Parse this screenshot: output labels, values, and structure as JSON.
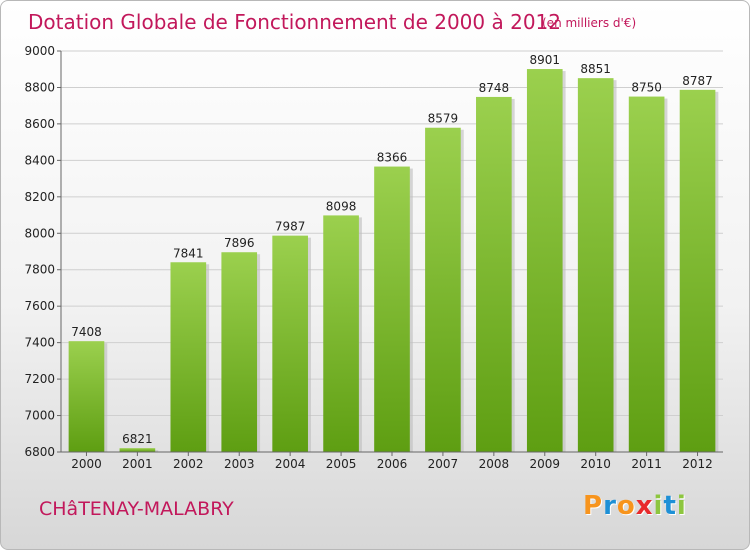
{
  "chart_data": {
    "type": "bar",
    "title": "Dotation Globale de Fonctionnement de 2000 à 2012",
    "unit": "(en milliers d'€)",
    "categories": [
      "2000",
      "2001",
      "2002",
      "2003",
      "2004",
      "2005",
      "2006",
      "2007",
      "2008",
      "2009",
      "2010",
      "2011",
      "2012"
    ],
    "values": [
      7408,
      6821,
      7841,
      7896,
      7987,
      8098,
      8366,
      8579,
      8748,
      8901,
      8851,
      8750,
      8787
    ],
    "ylim": [
      6800,
      9000
    ],
    "yticks": [
      6800,
      7000,
      7200,
      7400,
      7600,
      7800,
      8000,
      8200,
      8400,
      8600,
      8800,
      9000
    ],
    "grid": true,
    "bar_color": "#8dc63f"
  },
  "footer": {
    "city": "CHâTENAY-MALABRY",
    "logo_letters": [
      "P",
      "r",
      "o",
      "x",
      "i",
      "t",
      "i"
    ],
    "logo_colors": [
      "#f7941d",
      "#1e90d6",
      "#f7941d",
      "#e8292b",
      "#8dc63f",
      "#1e90d6",
      "#8dc63f"
    ]
  }
}
